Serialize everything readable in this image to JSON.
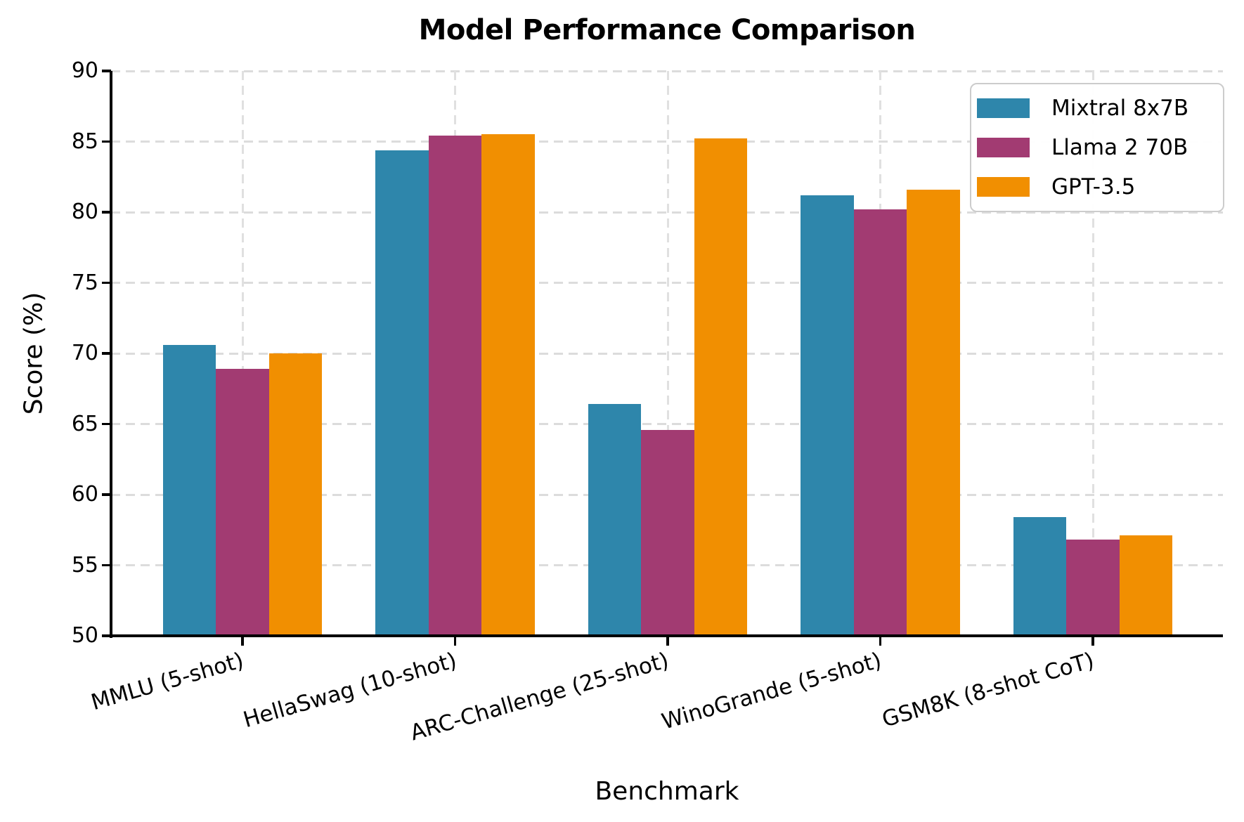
{
  "figure": {
    "title": "Model Performance Comparison"
  },
  "chart_data": {
    "type": "bar",
    "title": "Model Performance Comparison",
    "xlabel": "Benchmark",
    "ylabel": "Score (%)",
    "ylim": [
      50,
      90
    ],
    "yticks": [
      50,
      55,
      60,
      65,
      70,
      75,
      80,
      85,
      90
    ],
    "grid": "dashed, both axes",
    "legend_position": "upper right",
    "categories": [
      "MMLU (5-shot)",
      "HellaSwag (10-shot)",
      "ARC-Challenge (25-shot)",
      "WinoGrande (5-shot)",
      "GSM8K (8-shot CoT)"
    ],
    "series": [
      {
        "name": "Mixtral 8x7B",
        "color": "#2E86AB",
        "values": [
          70.6,
          84.4,
          66.4,
          81.2,
          58.4
        ]
      },
      {
        "name": "Llama 2 70B",
        "color": "#A23B72",
        "values": [
          68.9,
          85.4,
          64.6,
          80.2,
          56.8
        ]
      },
      {
        "name": "GPT-3.5",
        "color": "#F18F01",
        "values": [
          70.0,
          85.5,
          85.2,
          81.6,
          57.1
        ]
      }
    ]
  },
  "colors": {
    "background": "#ffffff",
    "spine": "#000000",
    "text": "#000000",
    "gridline": "#dcdcdc",
    "legend_border": "#cccccc"
  }
}
